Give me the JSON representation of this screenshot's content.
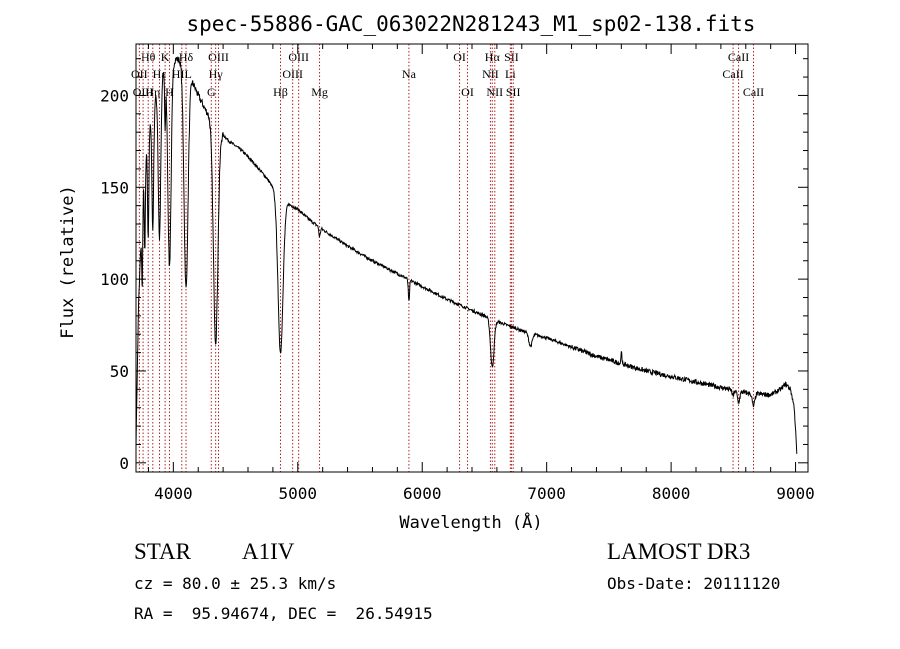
{
  "info": {
    "class_label": "STAR",
    "subclass": "A1IV",
    "survey": "LAMOST DR3",
    "redshift_line": "cz = 80.0 ± 25.3 km/s",
    "obs_date_line": "Obs-Date: 20111120",
    "coords_line": "RA =  95.94674, DEC =  26.54915"
  },
  "colors": {
    "line_marker": "#b22222",
    "spectrum": "#000000",
    "axes": "#000000"
  },
  "chart_data": {
    "type": "line",
    "title": "spec-55886-GAC_063022N281243_M1_sp02-138.fits",
    "xlabel": "Wavelength (Å)",
    "ylabel": "Flux (relative)",
    "xlim": [
      3700,
      9100
    ],
    "ylim": [
      -5,
      228
    ],
    "xticks": [
      4000,
      5000,
      6000,
      7000,
      8000,
      9000
    ],
    "yticks": [
      0,
      50,
      100,
      150,
      200
    ],
    "xticks_minor_step": 200,
    "yticks_minor_step": 10,
    "line_markers": [
      {
        "label": "Hθ",
        "wavelength": 3798,
        "row": 0
      },
      {
        "label": "OII",
        "wavelength": 3727,
        "row": 1
      },
      {
        "label": "OIII",
        "wavelength": 3757,
        "row": 2
      },
      {
        "label": "Hη",
        "wavelength": 3835,
        "row": 2
      },
      {
        "label": "K",
        "wavelength": 3934,
        "row": 0
      },
      {
        "label": "Hε",
        "wavelength": 3889,
        "row": 1
      },
      {
        "label": "H",
        "wavelength": 3969,
        "row": 2
      },
      {
        "label": "Hδ",
        "wavelength": 4102,
        "row": 0
      },
      {
        "label": "HIL",
        "wavelength": 4068,
        "row": 1
      },
      {
        "label": "OIII",
        "wavelength": 4363,
        "row": 0
      },
      {
        "label": "Hγ",
        "wavelength": 4340,
        "row": 1
      },
      {
        "label": "G",
        "wavelength": 4305,
        "row": 2
      },
      {
        "label": "OIII",
        "wavelength": 5007,
        "row": 0
      },
      {
        "label": "OIII",
        "wavelength": 4959,
        "row": 1
      },
      {
        "label": "Hβ",
        "wavelength": 4861,
        "row": 2
      },
      {
        "label": "Mg",
        "wavelength": 5175,
        "row": 2
      },
      {
        "label": "Na",
        "wavelength": 5893,
        "row": 1
      },
      {
        "label": "OI",
        "wavelength": 6300,
        "row": 0
      },
      {
        "label": "OI",
        "wavelength": 6364,
        "row": 2
      },
      {
        "label": "Hα",
        "wavelength": 6563,
        "row": 0
      },
      {
        "label": "SII",
        "wavelength": 6717,
        "row": 0
      },
      {
        "label": "NII",
        "wavelength": 6548,
        "row": 1
      },
      {
        "label": "Li",
        "wavelength": 6708,
        "row": 1
      },
      {
        "label": "NII",
        "wavelength": 6583,
        "row": 2
      },
      {
        "label": "SII",
        "wavelength": 6731,
        "row": 2
      },
      {
        "label": "CaII",
        "wavelength": 8542,
        "row": 0
      },
      {
        "label": "CaII",
        "wavelength": 8498,
        "row": 1
      },
      {
        "label": "CaII",
        "wavelength": 8662,
        "row": 2
      }
    ],
    "continuum": {
      "x": [
        3700,
        3720,
        3740,
        3760,
        3780,
        3800,
        3830,
        3860,
        3900,
        3940,
        3980,
        4020,
        4060,
        4100,
        4150,
        4200,
        4260,
        4320,
        4380,
        4450,
        4550,
        4650,
        4750,
        4820,
        4900,
        5000,
        5100,
        5200,
        5400,
        5600,
        5800,
        6000,
        6200,
        6400,
        6600,
        6800,
        7000,
        7200,
        7400,
        7600,
        7800,
        8000,
        8200,
        8400,
        8600,
        8800,
        8880,
        8920,
        8960,
        8990,
        9010
      ],
      "y": [
        10,
        85,
        120,
        150,
        165,
        178,
        190,
        200,
        210,
        215,
        218,
        220,
        219,
        215,
        208,
        200,
        192,
        186,
        180,
        175,
        170,
        163,
        155,
        148,
        142,
        138,
        132,
        127,
        118,
        110,
        103,
        96,
        89,
        83,
        77,
        72,
        68,
        63,
        58,
        54,
        50,
        47,
        44,
        41,
        38,
        37,
        40,
        43,
        40,
        30,
        5
      ]
    },
    "absorption_lines": [
      {
        "center": 3750,
        "depth": 40,
        "width": 4
      },
      {
        "center": 3771,
        "depth": 45,
        "width": 4
      },
      {
        "center": 3798,
        "depth": 55,
        "width": 5
      },
      {
        "center": 3835,
        "depth": 65,
        "width": 7
      },
      {
        "center": 3889,
        "depth": 85,
        "width": 10
      },
      {
        "center": 3934,
        "depth": 30,
        "width": 4
      },
      {
        "center": 3969,
        "depth": 110,
        "width": 13
      },
      {
        "center": 4102,
        "depth": 120,
        "width": 16
      },
      {
        "center": 4340,
        "depth": 118,
        "width": 18
      },
      {
        "center": 4861,
        "depth": 85,
        "width": 20
      },
      {
        "center": 5175,
        "depth": 5,
        "width": 6
      },
      {
        "center": 5893,
        "depth": 12,
        "width": 5
      },
      {
        "center": 6563,
        "depth": 26,
        "width": 14
      },
      {
        "center": 6870,
        "depth": 7,
        "width": 14
      },
      {
        "center": 7600,
        "depth": -8,
        "width": 3
      },
      {
        "center": 8498,
        "depth": 3,
        "width": 8
      },
      {
        "center": 8542,
        "depth": 6,
        "width": 9
      },
      {
        "center": 8662,
        "depth": 7,
        "width": 10
      }
    ]
  }
}
